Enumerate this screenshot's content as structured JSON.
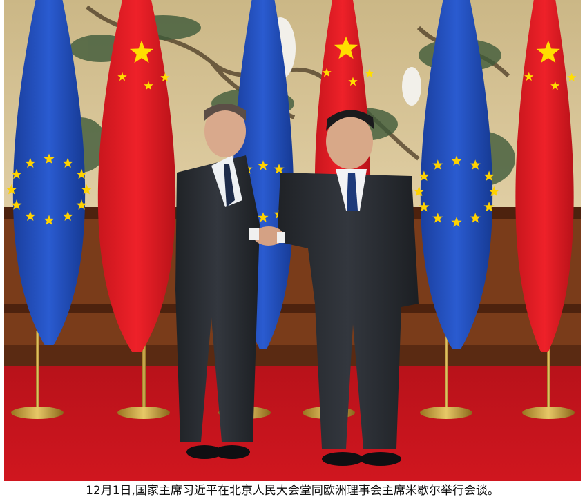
{
  "photo": {
    "description_icon": "photo-icon",
    "palette": {
      "wall": "#d8c59a",
      "carpet": "#c8141c",
      "eu_blue": "#1f4fbf",
      "eu_star": "#ffd200",
      "cn_red": "#e31b23",
      "cn_star": "#ffde00",
      "suit": "#2a2d33",
      "wood": "#5a2a14"
    }
  },
  "caption": {
    "text": "12月1日,国家主席习近平在北京人民大会堂同欧洲理事会主席米歇尔举行会谈。"
  }
}
